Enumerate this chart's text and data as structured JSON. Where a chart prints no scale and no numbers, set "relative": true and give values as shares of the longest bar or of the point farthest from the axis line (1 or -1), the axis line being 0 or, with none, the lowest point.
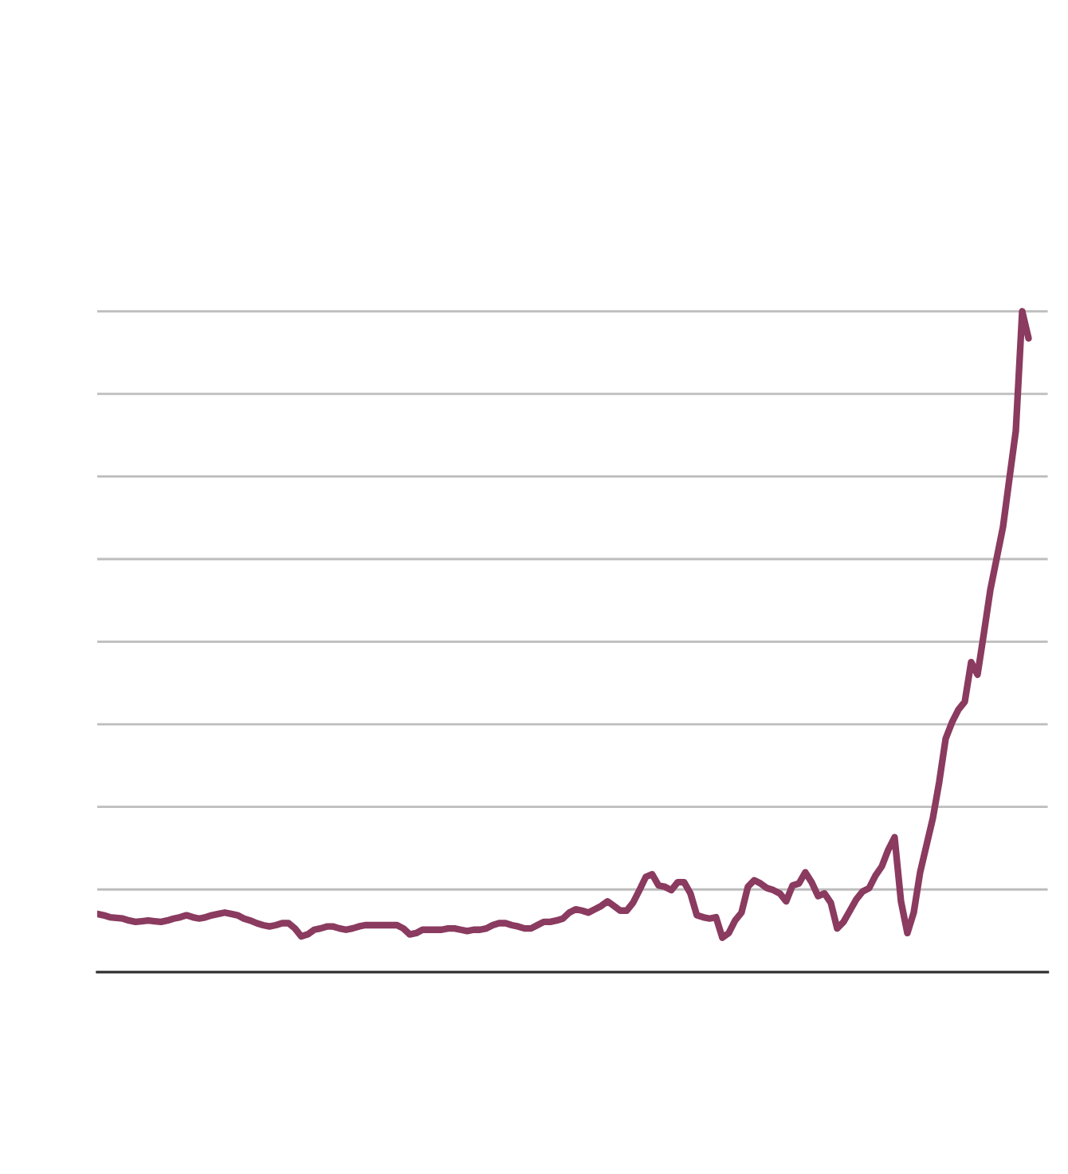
{
  "chart_data": {
    "type": "line",
    "relative": true,
    "grid": "y",
    "categories": [
      null,
      null,
      null,
      null,
      null,
      null,
      null,
      null,
      null,
      null,
      null,
      null,
      null,
      null,
      null,
      null,
      null,
      null,
      null,
      null,
      null,
      null,
      null,
      null,
      null,
      null,
      null,
      null,
      null,
      null,
      null,
      null,
      null,
      null,
      null,
      null,
      null,
      null,
      null,
      null,
      null,
      null,
      null,
      null,
      null,
      null,
      null,
      null,
      null,
      null,
      null,
      null,
      null,
      null,
      null,
      null,
      null,
      null,
      null,
      null,
      null,
      null,
      null,
      null,
      null,
      null,
      null,
      null,
      null,
      null,
      null,
      null,
      null,
      null,
      null,
      null,
      null,
      null,
      null,
      null,
      null,
      null,
      null,
      null,
      null,
      null,
      null,
      null,
      null,
      null,
      null,
      null,
      null,
      null,
      null,
      null,
      null,
      null,
      null,
      null,
      null,
      null,
      null,
      null,
      null,
      null,
      null,
      null,
      null,
      null,
      null,
      null,
      null,
      null,
      null,
      null,
      null,
      null,
      null,
      null,
      null,
      null,
      null,
      null,
      null,
      null,
      null,
      null,
      null,
      null,
      null,
      null,
      null,
      null,
      null,
      null,
      null,
      null,
      null,
      null,
      null,
      null,
      null,
      null,
      null,
      null,
      null
    ],
    "series": [
      {
        "color": "#8a3b5f",
        "values": [
          0.088,
          0.086,
          0.083,
          0.082,
          0.081,
          0.078,
          0.076,
          0.077,
          0.078,
          0.077,
          0.076,
          0.078,
          0.081,
          0.083,
          0.086,
          0.083,
          0.081,
          0.083,
          0.086,
          0.088,
          0.09,
          0.088,
          0.086,
          0.081,
          0.078,
          0.074,
          0.071,
          0.069,
          0.071,
          0.074,
          0.074,
          0.066,
          0.054,
          0.057,
          0.064,
          0.066,
          0.069,
          0.069,
          0.066,
          0.064,
          0.066,
          0.069,
          0.071,
          0.071,
          0.071,
          0.071,
          0.071,
          0.071,
          0.066,
          0.057,
          0.059,
          0.064,
          0.064,
          0.064,
          0.064,
          0.066,
          0.066,
          0.064,
          0.062,
          0.064,
          0.064,
          0.066,
          0.071,
          0.074,
          0.074,
          0.071,
          0.069,
          0.066,
          0.066,
          0.071,
          0.076,
          0.076,
          0.078,
          0.081,
          0.09,
          0.095,
          0.093,
          0.09,
          0.095,
          0.1,
          0.107,
          0.1,
          0.093,
          0.093,
          0.105,
          0.124,
          0.144,
          0.148,
          0.131,
          0.129,
          0.124,
          0.136,
          0.136,
          0.119,
          0.086,
          0.083,
          0.081,
          0.083,
          0.052,
          0.059,
          0.078,
          0.09,
          0.129,
          0.139,
          0.134,
          0.127,
          0.124,
          0.119,
          0.107,
          0.131,
          0.134,
          0.151,
          0.136,
          0.115,
          0.119,
          0.105,
          0.066,
          0.076,
          0.093,
          0.11,
          0.122,
          0.127,
          0.146,
          0.16,
          0.185,
          0.204,
          0.107,
          0.059,
          0.09,
          0.151,
          0.192,
          0.233,
          0.288,
          0.353,
          0.378,
          0.397,
          0.409,
          0.469,
          0.45,
          0.513,
          0.578,
          0.626,
          0.674,
          0.747,
          0.819,
          1.0,
          0.959
        ]
      }
    ]
  }
}
